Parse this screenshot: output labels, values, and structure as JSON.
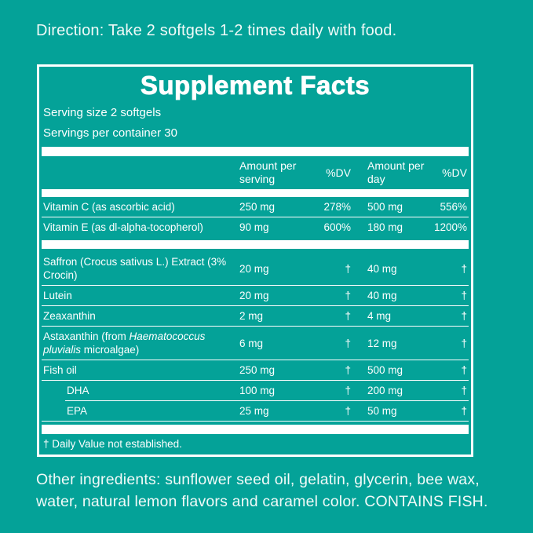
{
  "colors": {
    "background": "#04A298",
    "panel_border": "#FFFFFF",
    "panel_text": "#FFFFFF",
    "outer_text": "#F1FAF8"
  },
  "direction": "Direction: Take 2 softgels 1-2 times daily with food.",
  "supplement_facts": {
    "title": "Supplement Facts",
    "serving_size": "Serving size 2 softgels",
    "servings_per_container": "Servings per container 30",
    "columns": {
      "amount_per_serving": "Amount per serving",
      "dv_serving": "%DV",
      "amount_per_day": "Amount per day",
      "dv_day": "%DV"
    },
    "rows": [
      {
        "section": 1,
        "indent": false,
        "name_lines": [
          [
            {
              "t": "Vitamin C (as ascorbic acid)"
            }
          ]
        ],
        "amount_per_serving": "250 mg",
        "dv_serving": "278%",
        "amount_per_day": "500 mg",
        "dv_day": "556%"
      },
      {
        "section": 1,
        "indent": false,
        "name_lines": [
          [
            {
              "t": "Vitamin E (as dl-alpha-tocopherol)"
            }
          ]
        ],
        "amount_per_serving": "90 mg",
        "dv_serving": "600%",
        "amount_per_day": "180 mg",
        "dv_day": "1200%"
      },
      {
        "section": 2,
        "indent": false,
        "name_lines": [
          [
            {
              "t": "Saffron (Crocus sativus L.) Extract (3%"
            }
          ],
          [
            {
              "t": "Crocin)"
            }
          ]
        ],
        "amount_per_serving": "20 mg",
        "dv_serving": "†",
        "amount_per_day": "40 mg",
        "dv_day": "†"
      },
      {
        "section": 2,
        "indent": false,
        "name_lines": [
          [
            {
              "t": "Lutein"
            }
          ]
        ],
        "amount_per_serving": "20 mg",
        "dv_serving": "†",
        "amount_per_day": "40 mg",
        "dv_day": "†"
      },
      {
        "section": 2,
        "indent": false,
        "name_lines": [
          [
            {
              "t": "Zeaxanthin"
            }
          ]
        ],
        "amount_per_serving": "2 mg",
        "dv_serving": "†",
        "amount_per_day": "4 mg",
        "dv_day": "†"
      },
      {
        "section": 2,
        "indent": false,
        "name_lines": [
          [
            {
              "t": "Astaxanthin (from "
            },
            {
              "t": "Haematococcus",
              "i": true
            }
          ],
          [
            {
              "t": "pluvialis",
              "i": true
            },
            {
              "t": " microalgae)"
            }
          ]
        ],
        "amount_per_serving": "6 mg",
        "dv_serving": "†",
        "amount_per_day": "12 mg",
        "dv_day": "†"
      },
      {
        "section": 2,
        "indent": false,
        "name_lines": [
          [
            {
              "t": "Fish oil"
            }
          ]
        ],
        "amount_per_serving": "250 mg",
        "dv_serving": "†",
        "amount_per_day": "500 mg",
        "dv_day": "†"
      },
      {
        "section": 2,
        "indent": true,
        "sep_indent": true,
        "name_lines": [
          [
            {
              "t": "DHA"
            }
          ]
        ],
        "amount_per_serving": "100 mg",
        "dv_serving": "†",
        "amount_per_day": "200 mg",
        "dv_day": "†"
      },
      {
        "section": 2,
        "indent": true,
        "name_lines": [
          [
            {
              "t": "EPA"
            }
          ]
        ],
        "amount_per_serving": "25 mg",
        "dv_serving": "†",
        "amount_per_day": "50 mg",
        "dv_day": "†"
      }
    ],
    "footnote": "† Daily Value not established."
  },
  "other_ingredients": {
    "lines": [
      "Other ingredients: sunflower seed oil, gelatin, glycerin, bee wax,",
      "water, natural lemon flavors and caramel color. CONTAINS FISH."
    ]
  }
}
